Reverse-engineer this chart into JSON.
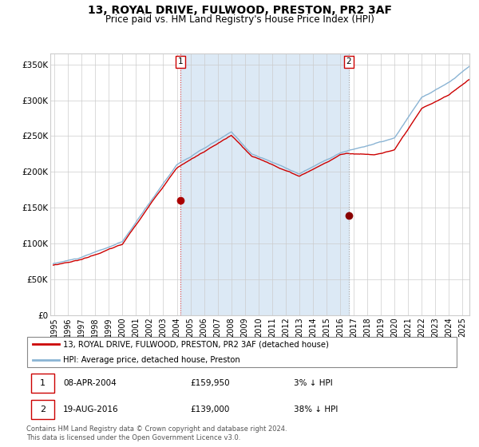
{
  "title": "13, ROYAL DRIVE, FULWOOD, PRESTON, PR2 3AF",
  "subtitle": "Price paid vs. HM Land Registry's House Price Index (HPI)",
  "title_fontsize": 10,
  "subtitle_fontsize": 8.5,
  "ylabel_ticks": [
    "£0",
    "£50K",
    "£100K",
    "£150K",
    "£200K",
    "£250K",
    "£300K",
    "£350K"
  ],
  "ytick_values": [
    0,
    50000,
    100000,
    150000,
    200000,
    250000,
    300000,
    350000
  ],
  "ylim": [
    0,
    365000
  ],
  "xlim_start": 1994.7,
  "xlim_end": 2025.5,
  "hpi_color": "#8ab4d4",
  "price_color": "#cc0000",
  "bg_color": "#dce9f5",
  "sale1_x": 2004.27,
  "sale1_y": 159950,
  "sale2_x": 2016.63,
  "sale2_y": 139000,
  "sale1_label": "1",
  "sale2_label": "2",
  "legend_line1": "13, ROYAL DRIVE, FULWOOD, PRESTON, PR2 3AF (detached house)",
  "legend_line2": "HPI: Average price, detached house, Preston",
  "footer": "Contains HM Land Registry data © Crown copyright and database right 2024.\nThis data is licensed under the Open Government Licence v3.0.",
  "xtick_years": [
    1995,
    1996,
    1997,
    1998,
    1999,
    2000,
    2001,
    2002,
    2003,
    2004,
    2005,
    2006,
    2007,
    2008,
    2009,
    2010,
    2011,
    2012,
    2013,
    2014,
    2015,
    2016,
    2017,
    2018,
    2019,
    2020,
    2021,
    2022,
    2023,
    2024,
    2025
  ]
}
